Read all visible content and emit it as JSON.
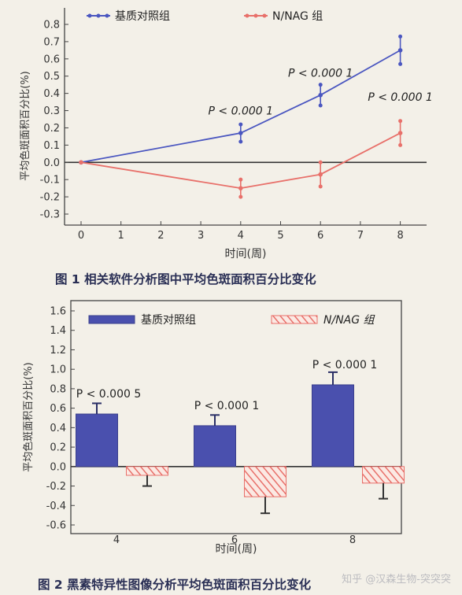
{
  "chart_data": [
    {
      "type": "line",
      "caption": "图 1   相关软件分析图中平均色斑面积百分比变化",
      "xlabel": "时间(周)",
      "ylabel": "平均色斑面积百分比(%)",
      "x_ticks": [
        0,
        1,
        2,
        3,
        4,
        5,
        6,
        7,
        8
      ],
      "xlim": [
        -0.5,
        8.6
      ],
      "y_ticks": [
        "0.8",
        "0.7",
        "0.6",
        "0.5",
        "0.4",
        "0.3",
        "0.2",
        "0.1",
        "0.0",
        "-0.1",
        "-0.2",
        "-0.3"
      ],
      "ylim": [
        -0.35,
        0.82
      ],
      "legend_position": "top",
      "series": [
        {
          "name": "基质对照组",
          "color": "#4a56c0",
          "x": [
            0,
            4,
            6,
            8
          ],
          "values": [
            0.0,
            0.17,
            0.39,
            0.65
          ],
          "error": [
            0.01,
            0.05,
            0.06,
            0.08
          ]
        },
        {
          "name": "N/NAG 组",
          "color": "#e8706a",
          "x": [
            0,
            4,
            6,
            8
          ],
          "values": [
            0.0,
            -0.15,
            -0.07,
            0.17
          ],
          "error": [
            0.01,
            0.05,
            0.07,
            0.07
          ]
        }
      ],
      "annotations": [
        {
          "text": "P < 0.000 1",
          "x": 4,
          "y": 0.3
        },
        {
          "text": "P < 0.000 1",
          "x": 6,
          "y": 0.52
        },
        {
          "text": "P < 0.000 1",
          "x": 8,
          "y": 0.38
        }
      ]
    },
    {
      "type": "bar",
      "caption": "图 2   黑素特异性图像分析平均色斑面积百分比变化",
      "xlabel": "时间(周)",
      "ylabel": "平均色斑面积百分比(%)",
      "categories": [
        "4",
        "6",
        "8"
      ],
      "y_ticks": [
        "1.6",
        "1.4",
        "1.2",
        "1.0",
        "0.8",
        "0.6",
        "0.4",
        "0.2",
        "0.0",
        "-0.2",
        "-0.4",
        "-0.6"
      ],
      "ylim": [
        -0.6,
        1.6
      ],
      "legend_position": "top",
      "series": [
        {
          "name": "基质对照组",
          "color": "#4a50ae",
          "values": [
            0.54,
            0.42,
            0.84
          ],
          "error": [
            0.11,
            0.11,
            0.13
          ]
        },
        {
          "name": "N/NAG 组",
          "color": "#e8706a",
          "values": [
            -0.09,
            -0.31,
            -0.17
          ],
          "error": [
            0.11,
            0.17,
            0.16
          ]
        }
      ],
      "annotations": [
        {
          "text": "P < 0.000 5",
          "category": 0,
          "y": 0.75
        },
        {
          "text": "P < 0.000 1",
          "category": 1,
          "y": 0.63
        },
        {
          "text": "P < 0.000 1",
          "category": 2,
          "y": 1.05
        }
      ]
    }
  ],
  "watermark": "知乎 @汉森生物-突突突"
}
